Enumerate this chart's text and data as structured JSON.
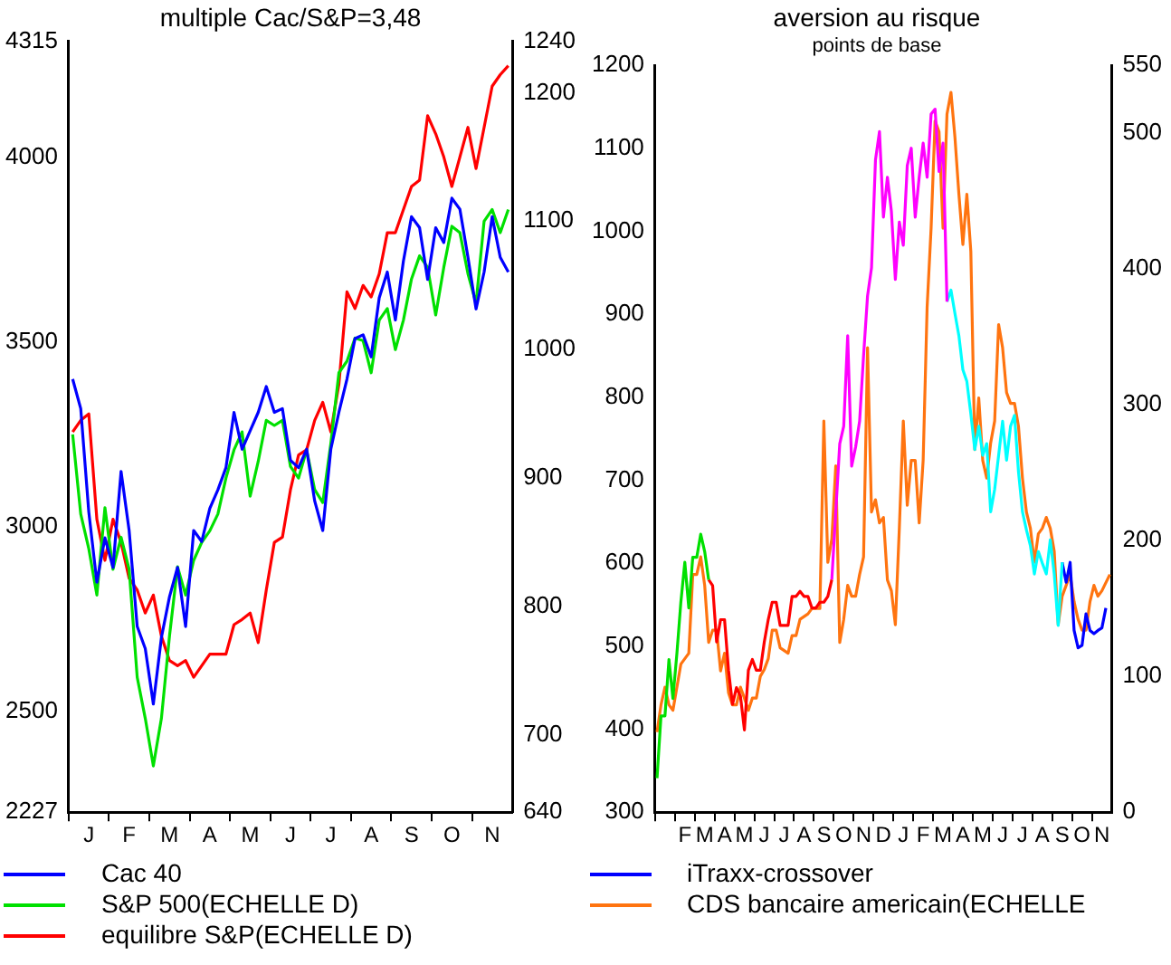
{
  "chart_data": [
    {
      "type": "line",
      "title": "multiple Cac/S&P=3,48",
      "legend": "bottom",
      "marker": "none",
      "grid": false,
      "categories": [
        null,
        null,
        "J",
        null,
        null,
        null,
        null,
        "F",
        null,
        null,
        null,
        null,
        "M",
        null,
        null,
        null,
        null,
        "A",
        null,
        null,
        null,
        null,
        "M",
        null,
        null,
        null,
        null,
        "J",
        null,
        null,
        null,
        null,
        "J",
        null,
        null,
        null,
        null,
        "A",
        null,
        null,
        null,
        null,
        "S",
        null,
        null,
        null,
        null,
        "O",
        null,
        null,
        null,
        null,
        "N",
        null,
        null
      ],
      "ylim": [
        2227,
        4315
      ],
      "yticks": [
        2227,
        2500,
        3000,
        3500,
        4000,
        4315
      ],
      "y2lim": [
        640,
        1240
      ],
      "y2ticks": [
        640,
        700,
        800,
        900,
        1000,
        1100,
        1200,
        1240
      ],
      "series": [
        {
          "name": "Cac 40",
          "color": "#0000ff",
          "values": [
            3400,
            3320,
            3040,
            2850,
            2970,
            2890,
            3150,
            2990,
            2730,
            2670,
            2520,
            2700,
            2810,
            2890,
            2730,
            2990,
            2960,
            3050,
            3100,
            3160,
            3310,
            3210,
            3260,
            3310,
            3380,
            3310,
            3320,
            3180,
            3160,
            3210,
            3070,
            2990,
            3210,
            3310,
            3400,
            3510,
            3520,
            3460,
            3620,
            3690,
            3560,
            3720,
            3840,
            3810,
            3670,
            3810,
            3770,
            3890,
            3860,
            3730,
            3590,
            3690,
            3840,
            3730,
            3690
          ]
        },
        {
          "name": "S&P 500(ECHELLE D)",
          "color": "#00e000",
          "axis": "y2",
          "values": [
            934,
            872,
            845,
            809,
            877,
            829,
            854,
            829,
            745,
            713,
            676,
            713,
            777,
            831,
            809,
            836,
            850,
            859,
            872,
            900,
            922,
            936,
            886,
            913,
            945,
            941,
            945,
            909,
            900,
            922,
            891,
            881,
            927,
            982,
            991,
            1009,
            1007,
            982,
            1023,
            1032,
            1000,
            1023,
            1055,
            1073,
            1064,
            1027,
            1064,
            1096,
            1091,
            1059,
            1036,
            1100,
            1109,
            1091,
            1109
          ]
        },
        {
          "name": "equilibre S&P(ECHELLE D)",
          "color": "#ff0000",
          "axis": "y2",
          "values": [
            936,
            945,
            950,
            868,
            836,
            868,
            850,
            822,
            813,
            795,
            809,
            777,
            758,
            754,
            758,
            745,
            754,
            763,
            763,
            763,
            786,
            790,
            795,
            772,
            813,
            850,
            854,
            891,
            918,
            922,
            945,
            959,
            936,
            973,
            1045,
            1032,
            1050,
            1041,
            1059,
            1091,
            1091,
            1109,
            1127,
            1132,
            1182,
            1168,
            1150,
            1127,
            1150,
            1173,
            1141,
            1173,
            1205,
            1214,
            1221
          ]
        }
      ]
    },
    {
      "type": "line",
      "title": "aversion au risque",
      "subtitle": "points de base",
      "legend": "bottom",
      "marker": "none",
      "grid": false,
      "categories": [
        null,
        null,
        null,
        null,
        null,
        null,
        null,
        "F",
        null,
        null,
        null,
        null,
        "M",
        null,
        null,
        null,
        null,
        "A",
        null,
        null,
        null,
        null,
        "M",
        null,
        null,
        null,
        null,
        "J",
        null,
        null,
        null,
        null,
        "J",
        null,
        null,
        null,
        null,
        "A",
        null,
        null,
        null,
        null,
        "S",
        null,
        null,
        null,
        null,
        "O",
        null,
        null,
        null,
        null,
        "N",
        null,
        null,
        null,
        null,
        "D",
        null,
        null,
        null,
        null,
        "J",
        null,
        null,
        null,
        null,
        "F",
        null,
        null,
        null,
        null,
        "M",
        null,
        null,
        null,
        null,
        "A",
        null,
        null,
        null,
        null,
        "M",
        null,
        null,
        null,
        null,
        "J",
        null,
        null,
        null,
        null,
        "J",
        null,
        null,
        null,
        null,
        "A",
        null,
        null,
        null,
        null,
        "S",
        null,
        null,
        null,
        null,
        "O",
        null,
        null,
        null,
        null,
        "N",
        null,
        null
      ],
      "ylim": [
        300,
        1200
      ],
      "yticks": [
        300,
        400,
        500,
        600,
        700,
        800,
        900,
        1000,
        1100,
        1200
      ],
      "y2lim": [
        0,
        550
      ],
      "y2ticks": [
        0,
        100,
        200,
        300,
        400,
        500,
        550
      ],
      "series": [
        {
          "color": "#00e000",
          "values": [
            341,
            416,
            416,
            484,
            437,
            491,
            553,
            601,
            546,
            607,
            607,
            635,
            614,
            580,
            null,
            null,
            null,
            null,
            null,
            null,
            null,
            null,
            null,
            null,
            null,
            null,
            null,
            null,
            null,
            null,
            null,
            null,
            null,
            null,
            null,
            null,
            null,
            null,
            null,
            null,
            null,
            null,
            null,
            null,
            null,
            null,
            null,
            null,
            null,
            null,
            null,
            null,
            null,
            null,
            null,
            null,
            null,
            null,
            null,
            null,
            null,
            null,
            null,
            null,
            null,
            null,
            null,
            null,
            null,
            null,
            null,
            null,
            null,
            null,
            null,
            null,
            null,
            null,
            null,
            null,
            null,
            null,
            null,
            null,
            null,
            null,
            null,
            null,
            null,
            null,
            null,
            null,
            null,
            null,
            null,
            null,
            null,
            null,
            null,
            null,
            null,
            null,
            null,
            null,
            null,
            null,
            null,
            null,
            null,
            null,
            null,
            null,
            null,
            null,
            null
          ]
        },
        {
          "color": "#ff0000",
          "values": [
            null,
            null,
            null,
            null,
            null,
            null,
            null,
            null,
            null,
            null,
            null,
            null,
            null,
            580,
            573,
            505,
            532,
            532,
            471,
            430,
            450,
            440,
            399,
            471,
            484,
            471,
            471,
            505,
            532,
            553,
            553,
            525,
            525,
            525,
            560,
            560,
            566,
            560,
            560,
            546,
            546,
            553,
            553,
            560,
            580,
            null,
            null,
            null,
            null,
            null,
            null,
            null,
            null,
            null,
            null,
            null,
            null,
            null,
            null,
            null,
            null,
            null,
            null,
            null,
            null,
            null,
            null,
            null,
            null,
            null,
            null,
            null,
            null,
            null,
            null,
            null,
            null,
            null,
            null,
            null,
            null,
            null,
            null,
            null,
            null,
            null,
            null,
            null,
            null,
            null,
            null,
            null,
            null,
            null,
            null,
            null,
            null,
            null,
            null,
            null,
            null,
            null,
            null,
            null,
            null,
            null,
            null,
            null,
            null,
            null,
            null,
            null,
            null,
            null,
            null
          ]
        },
        {
          "color": "#ff00ff",
          "values": [
            null,
            null,
            null,
            null,
            null,
            null,
            null,
            null,
            null,
            null,
            null,
            null,
            null,
            null,
            null,
            null,
            null,
            null,
            null,
            null,
            null,
            null,
            null,
            null,
            null,
            null,
            null,
            null,
            null,
            null,
            null,
            null,
            null,
            null,
            null,
            null,
            null,
            null,
            null,
            null,
            null,
            null,
            null,
            null,
            580,
            662,
            744,
            765,
            874,
            717,
            740,
            771,
            850,
            922,
            956,
            1086,
            1120,
            1017,
            1065,
            1024,
            942,
            1011,
            983,
            1079,
            1100,
            1017,
            1065,
            1106,
            1065,
            1141,
            1147,
            1072,
            1106,
            915,
            null,
            null,
            null,
            null,
            null,
            null,
            null,
            null,
            null,
            null,
            null,
            null,
            null,
            null,
            null,
            null,
            null,
            null,
            null,
            null,
            null,
            null,
            null,
            null,
            null,
            null,
            null,
            null,
            null,
            null,
            null,
            null,
            null,
            null,
            null,
            null,
            null,
            null,
            null,
            null,
            null
          ]
        },
        {
          "color": "#00ffff",
          "values": [
            null,
            null,
            null,
            null,
            null,
            null,
            null,
            null,
            null,
            null,
            null,
            null,
            null,
            null,
            null,
            null,
            null,
            null,
            null,
            null,
            null,
            null,
            null,
            null,
            null,
            null,
            null,
            null,
            null,
            null,
            null,
            null,
            null,
            null,
            null,
            null,
            null,
            null,
            null,
            null,
            null,
            null,
            null,
            null,
            null,
            null,
            null,
            null,
            null,
            null,
            null,
            null,
            null,
            null,
            null,
            null,
            null,
            null,
            null,
            null,
            null,
            null,
            null,
            null,
            null,
            null,
            null,
            null,
            null,
            null,
            null,
            null,
            null,
            915,
            929,
            901,
            874,
            833,
            819,
            780,
            737,
            765,
            730,
            744,
            662,
            689,
            730,
            771,
            724,
            765,
            778,
            710,
            662,
            640,
            621,
            587,
            614,
            600,
            587,
            628,
            587,
            525,
            601,
            null,
            null,
            null,
            null,
            null,
            null,
            null,
            null,
            null,
            null,
            null,
            null
          ]
        },
        {
          "name": "iTraxx-crossover",
          "color": "#0000ff",
          "values": [
            null,
            null,
            null,
            null,
            null,
            null,
            null,
            null,
            null,
            null,
            null,
            null,
            null,
            null,
            null,
            null,
            null,
            null,
            null,
            null,
            null,
            null,
            null,
            null,
            null,
            null,
            null,
            null,
            null,
            null,
            null,
            null,
            null,
            null,
            null,
            null,
            null,
            null,
            null,
            null,
            null,
            null,
            null,
            null,
            null,
            null,
            null,
            null,
            null,
            null,
            null,
            null,
            null,
            null,
            null,
            null,
            null,
            null,
            null,
            null,
            null,
            null,
            null,
            null,
            null,
            null,
            null,
            null,
            null,
            null,
            null,
            null,
            null,
            null,
            null,
            null,
            null,
            null,
            null,
            null,
            null,
            null,
            null,
            null,
            null,
            null,
            null,
            null,
            null,
            null,
            null,
            null,
            null,
            null,
            null,
            null,
            null,
            null,
            null,
            null,
            null,
            null,
            601,
            577,
            601,
            519,
            498,
            501,
            539,
            519,
            515,
            519,
            522,
            546,
            null
          ]
        },
        {
          "name": "CDS bancaire americain(ECHELLE",
          "color": "#ff7410",
          "axis": "y2",
          "values": [
            59,
            79,
            92,
            79,
            75,
            92,
            109,
            113,
            117,
            175,
            175,
            188,
            167,
            125,
            134,
            134,
            104,
            117,
            88,
            79,
            79,
            92,
            84,
            75,
            84,
            84,
            100,
            105,
            113,
            134,
            134,
            121,
            119,
            117,
            130,
            130,
            142,
            144,
            146,
            150,
            150,
            150,
            288,
            184,
            201,
            255,
            125,
            142,
            167,
            159,
            159,
            175,
            188,
            342,
            221,
            230,
            213,
            217,
            171,
            163,
            138,
            209,
            288,
            226,
            259,
            259,
            213,
            259,
            372,
            430,
            509,
            501,
            430,
            514,
            530,
            497,
            455,
            418,
            455,
            413,
            267,
            305,
            259,
            246,
            272,
            288,
            359,
            342,
            309,
            301,
            301,
            284,
            246,
            221,
            209,
            184,
            205,
            209,
            217,
            209,
            192,
            138,
            159,
            167,
            175,
            155,
            142,
            134,
            134,
            155,
            167,
            159,
            163,
            169,
            175
          ]
        }
      ]
    }
  ]
}
